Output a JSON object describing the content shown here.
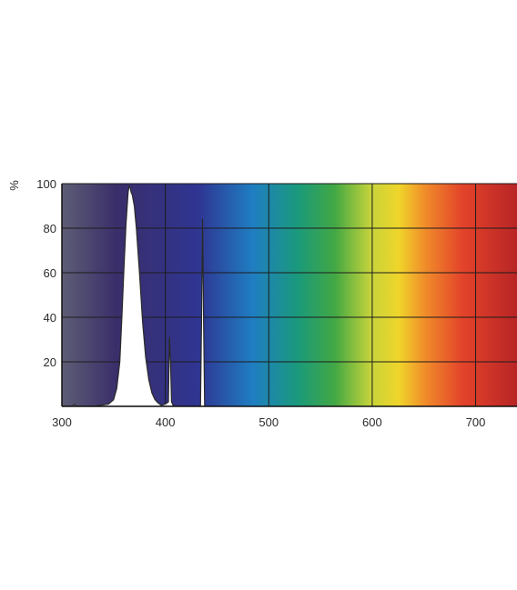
{
  "chart_data": {
    "type": "area",
    "title": "",
    "xlabel": "",
    "ylabel": "%",
    "xlim": [
      300,
      740
    ],
    "ylim": [
      0,
      100
    ],
    "x_ticks": [
      300,
      400,
      500,
      600,
      700
    ],
    "y_ticks": [
      20,
      40,
      60,
      80,
      100
    ],
    "grid": true,
    "background": "visible-spectrum gradient",
    "spectrum_colors": [
      "#5d5d75",
      "#3a2e6a",
      "#2f3592",
      "#1f7ec2",
      "#1a9a7a",
      "#43a844",
      "#c7d43a",
      "#f0d52a",
      "#f08a2a",
      "#e3432a",
      "#b82525"
    ],
    "series": [
      {
        "fill": "#ffffff",
        "x": [
          300,
          310,
          312,
          314,
          330,
          345,
          350,
          353,
          356,
          358,
          360,
          362,
          364,
          365,
          366,
          367,
          368,
          370,
          372,
          375,
          378,
          381,
          384,
          387,
          390,
          393,
          396,
          400,
          403,
          404,
          405,
          406,
          407,
          408,
          420,
          434,
          435,
          436,
          437,
          438,
          450
        ],
        "y": [
          0,
          0,
          1,
          0,
          0,
          1,
          3,
          8,
          20,
          40,
          62,
          82,
          96,
          99,
          98,
          96,
          95,
          90,
          80,
          60,
          38,
          22,
          12,
          6,
          3,
          1.5,
          0.5,
          1,
          2,
          31,
          20,
          2,
          1,
          0,
          0,
          0,
          38,
          84,
          38,
          0,
          0
        ]
      }
    ]
  }
}
